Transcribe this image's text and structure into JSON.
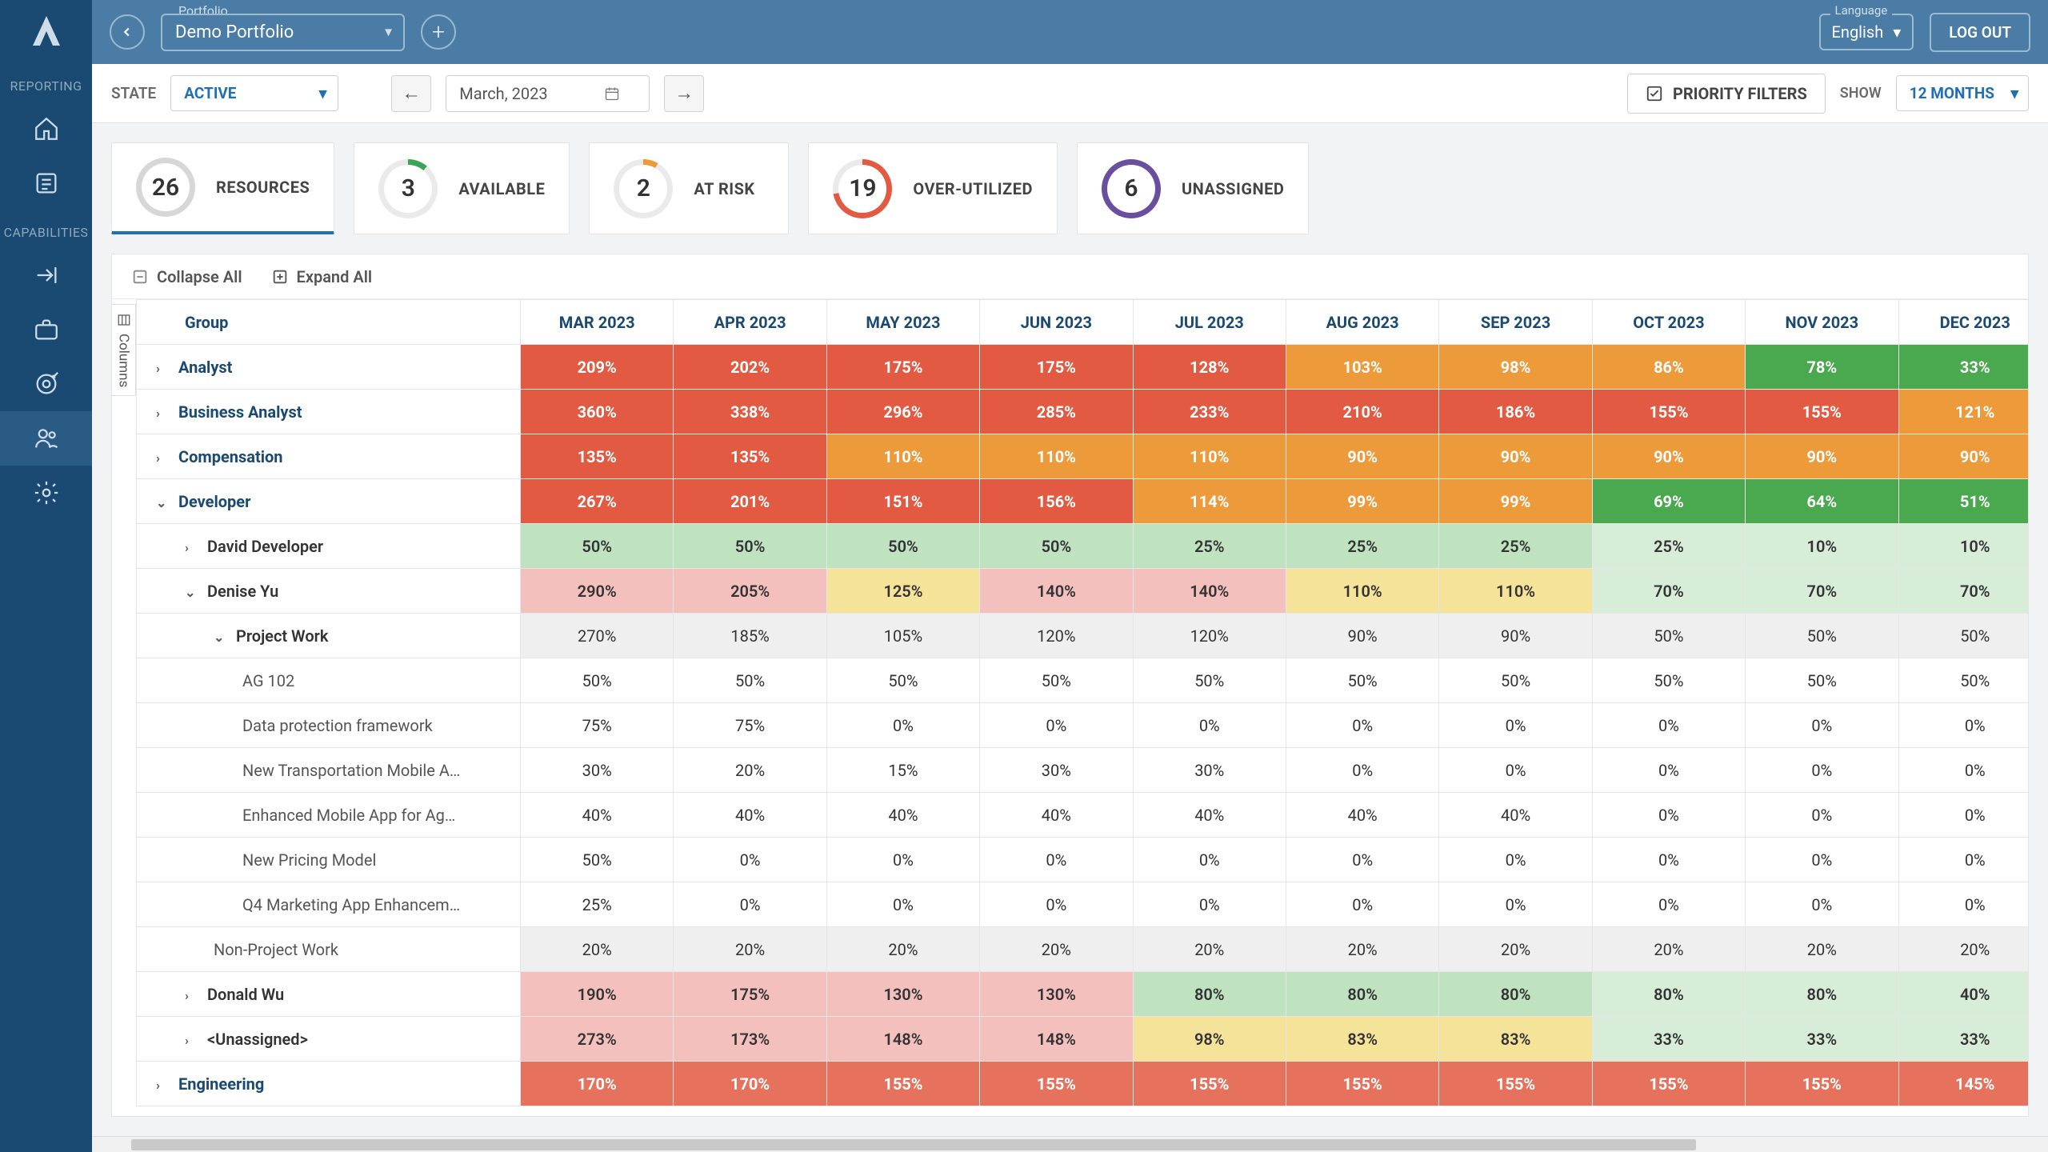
{
  "sidebar": {
    "section1": "REPORTING",
    "section2": "CAPABILITIES"
  },
  "topbar": {
    "portfolio_label": "Portfolio",
    "portfolio_value": "Demo Portfolio",
    "language_label": "Language",
    "language_value": "English",
    "logout": "LOG OUT"
  },
  "toolbar": {
    "state_label": "STATE",
    "state_value": "ACTIVE",
    "date_value": "March, 2023",
    "priority_filters": "PRIORITY FILTERS",
    "show_label": "SHOW",
    "months_value": "12 MONTHS"
  },
  "kpis": [
    {
      "value": "26",
      "label": "RESOURCES",
      "ring_color": "#d7d7d7",
      "arc_color": "#d7d7d7",
      "arc_deg": 360,
      "active": true
    },
    {
      "value": "3",
      "label": "AVAILABLE",
      "ring_color": "#eaeaea",
      "arc_color": "#3aa655",
      "arc_deg": 40,
      "active": false
    },
    {
      "value": "2",
      "label": "AT RISK",
      "ring_color": "#eaeaea",
      "arc_color": "#ed9a3a",
      "arc_deg": 30,
      "active": false
    },
    {
      "value": "19",
      "label": "OVER-UTILIZED",
      "ring_color": "#eaeaea",
      "arc_color": "#e25a42",
      "arc_deg": 260,
      "active": false
    },
    {
      "value": "6",
      "label": "UNASSIGNED",
      "ring_color": "#ffffff",
      "arc_color": "#6a4fa0",
      "arc_deg": 360,
      "active": false
    }
  ],
  "grid": {
    "collapse_all": "Collapse All",
    "expand_all": "Expand All",
    "columns_tab": "Columns",
    "group_header": "Group",
    "months": [
      "MAR 2023",
      "APR 2023",
      "MAY 2023",
      "JUN 2023",
      "JUL 2023",
      "AUG 2023",
      "SEP 2023",
      "OCT 2023",
      "NOV 2023",
      "DEC 2023"
    ],
    "colors": {
      "red": "#e25a42",
      "orange": "#ed9a3a",
      "green": "#4aa84e",
      "pink": "#f3c0bd",
      "lgreen": "#bfe3c0",
      "lgreen2": "#d7edd7",
      "yellow": "#f5e39a",
      "gray": "#efefef",
      "white": "#ffffff"
    },
    "rows": [
      {
        "label": "Analyst",
        "indent": 0,
        "expanded": false,
        "link": true,
        "cells": [
          {
            "v": "209%",
            "c": "red"
          },
          {
            "v": "202%",
            "c": "red"
          },
          {
            "v": "175%",
            "c": "red"
          },
          {
            "v": "175%",
            "c": "red"
          },
          {
            "v": "128%",
            "c": "red"
          },
          {
            "v": "103%",
            "c": "orange"
          },
          {
            "v": "98%",
            "c": "orange"
          },
          {
            "v": "86%",
            "c": "orange"
          },
          {
            "v": "78%",
            "c": "green"
          },
          {
            "v": "33%",
            "c": "green"
          }
        ]
      },
      {
        "label": "Business Analyst",
        "indent": 0,
        "expanded": false,
        "link": true,
        "cells": [
          {
            "v": "360%",
            "c": "red"
          },
          {
            "v": "338%",
            "c": "red"
          },
          {
            "v": "296%",
            "c": "red"
          },
          {
            "v": "285%",
            "c": "red"
          },
          {
            "v": "233%",
            "c": "red"
          },
          {
            "v": "210%",
            "c": "red"
          },
          {
            "v": "186%",
            "c": "red"
          },
          {
            "v": "155%",
            "c": "red"
          },
          {
            "v": "155%",
            "c": "red"
          },
          {
            "v": "121%",
            "c": "orange"
          }
        ]
      },
      {
        "label": "Compensation",
        "indent": 0,
        "expanded": false,
        "link": true,
        "cells": [
          {
            "v": "135%",
            "c": "red"
          },
          {
            "v": "135%",
            "c": "red"
          },
          {
            "v": "110%",
            "c": "orange"
          },
          {
            "v": "110%",
            "c": "orange"
          },
          {
            "v": "110%",
            "c": "orange"
          },
          {
            "v": "90%",
            "c": "orange"
          },
          {
            "v": "90%",
            "c": "orange"
          },
          {
            "v": "90%",
            "c": "orange"
          },
          {
            "v": "90%",
            "c": "orange"
          },
          {
            "v": "90%",
            "c": "orange"
          }
        ]
      },
      {
        "label": "Developer",
        "indent": 0,
        "expanded": true,
        "link": true,
        "cells": [
          {
            "v": "267%",
            "c": "red"
          },
          {
            "v": "201%",
            "c": "red"
          },
          {
            "v": "151%",
            "c": "red"
          },
          {
            "v": "156%",
            "c": "red"
          },
          {
            "v": "114%",
            "c": "orange"
          },
          {
            "v": "99%",
            "c": "orange"
          },
          {
            "v": "99%",
            "c": "orange"
          },
          {
            "v": "69%",
            "c": "green"
          },
          {
            "v": "64%",
            "c": "green"
          },
          {
            "v": "51%",
            "c": "green"
          }
        ]
      },
      {
        "label": "David Developer",
        "indent": 1,
        "expanded": false,
        "link": false,
        "cells": [
          {
            "v": "50%",
            "c": "lgreen"
          },
          {
            "v": "50%",
            "c": "lgreen"
          },
          {
            "v": "50%",
            "c": "lgreen"
          },
          {
            "v": "50%",
            "c": "lgreen"
          },
          {
            "v": "25%",
            "c": "lgreen"
          },
          {
            "v": "25%",
            "c": "lgreen"
          },
          {
            "v": "25%",
            "c": "lgreen"
          },
          {
            "v": "25%",
            "c": "lgreen2"
          },
          {
            "v": "10%",
            "c": "lgreen2"
          },
          {
            "v": "10%",
            "c": "lgreen2"
          }
        ]
      },
      {
        "label": "Denise Yu",
        "indent": 1,
        "expanded": true,
        "link": false,
        "cells": [
          {
            "v": "290%",
            "c": "pink"
          },
          {
            "v": "205%",
            "c": "pink"
          },
          {
            "v": "125%",
            "c": "yellow"
          },
          {
            "v": "140%",
            "c": "pink"
          },
          {
            "v": "140%",
            "c": "pink"
          },
          {
            "v": "110%",
            "c": "yellow"
          },
          {
            "v": "110%",
            "c": "yellow"
          },
          {
            "v": "70%",
            "c": "lgreen2"
          },
          {
            "v": "70%",
            "c": "lgreen2"
          },
          {
            "v": "70%",
            "c": "lgreen2"
          }
        ]
      },
      {
        "label": "Project Work",
        "indent": 2,
        "expanded": true,
        "link": false,
        "cells": [
          {
            "v": "270%",
            "c": "gray"
          },
          {
            "v": "185%",
            "c": "gray"
          },
          {
            "v": "105%",
            "c": "gray"
          },
          {
            "v": "120%",
            "c": "gray"
          },
          {
            "v": "120%",
            "c": "gray"
          },
          {
            "v": "90%",
            "c": "gray"
          },
          {
            "v": "90%",
            "c": "gray"
          },
          {
            "v": "50%",
            "c": "gray"
          },
          {
            "v": "50%",
            "c": "gray"
          },
          {
            "v": "50%",
            "c": "gray"
          }
        ]
      },
      {
        "label": "AG 102",
        "indent": 3,
        "leaf": true,
        "cells": [
          {
            "v": "50%",
            "c": "white"
          },
          {
            "v": "50%",
            "c": "white"
          },
          {
            "v": "50%",
            "c": "white"
          },
          {
            "v": "50%",
            "c": "white"
          },
          {
            "v": "50%",
            "c": "white"
          },
          {
            "v": "50%",
            "c": "white"
          },
          {
            "v": "50%",
            "c": "white"
          },
          {
            "v": "50%",
            "c": "white"
          },
          {
            "v": "50%",
            "c": "white"
          },
          {
            "v": "50%",
            "c": "white"
          }
        ]
      },
      {
        "label": "Data protection framework",
        "indent": 3,
        "leaf": true,
        "cells": [
          {
            "v": "75%",
            "c": "white"
          },
          {
            "v": "75%",
            "c": "white"
          },
          {
            "v": "0%",
            "c": "white"
          },
          {
            "v": "0%",
            "c": "white"
          },
          {
            "v": "0%",
            "c": "white"
          },
          {
            "v": "0%",
            "c": "white"
          },
          {
            "v": "0%",
            "c": "white"
          },
          {
            "v": "0%",
            "c": "white"
          },
          {
            "v": "0%",
            "c": "white"
          },
          {
            "v": "0%",
            "c": "white"
          }
        ]
      },
      {
        "label": "New Transportation Mobile A…",
        "indent": 3,
        "leaf": true,
        "cells": [
          {
            "v": "30%",
            "c": "white"
          },
          {
            "v": "20%",
            "c": "white"
          },
          {
            "v": "15%",
            "c": "white"
          },
          {
            "v": "30%",
            "c": "white"
          },
          {
            "v": "30%",
            "c": "white"
          },
          {
            "v": "0%",
            "c": "white"
          },
          {
            "v": "0%",
            "c": "white"
          },
          {
            "v": "0%",
            "c": "white"
          },
          {
            "v": "0%",
            "c": "white"
          },
          {
            "v": "0%",
            "c": "white"
          }
        ]
      },
      {
        "label": "Enhanced Mobile App for Ag…",
        "indent": 3,
        "leaf": true,
        "cells": [
          {
            "v": "40%",
            "c": "white"
          },
          {
            "v": "40%",
            "c": "white"
          },
          {
            "v": "40%",
            "c": "white"
          },
          {
            "v": "40%",
            "c": "white"
          },
          {
            "v": "40%",
            "c": "white"
          },
          {
            "v": "40%",
            "c": "white"
          },
          {
            "v": "40%",
            "c": "white"
          },
          {
            "v": "0%",
            "c": "white"
          },
          {
            "v": "0%",
            "c": "white"
          },
          {
            "v": "0%",
            "c": "white"
          }
        ]
      },
      {
        "label": "New Pricing Model",
        "indent": 3,
        "leaf": true,
        "cells": [
          {
            "v": "50%",
            "c": "white"
          },
          {
            "v": "0%",
            "c": "white"
          },
          {
            "v": "0%",
            "c": "white"
          },
          {
            "v": "0%",
            "c": "white"
          },
          {
            "v": "0%",
            "c": "white"
          },
          {
            "v": "0%",
            "c": "white"
          },
          {
            "v": "0%",
            "c": "white"
          },
          {
            "v": "0%",
            "c": "white"
          },
          {
            "v": "0%",
            "c": "white"
          },
          {
            "v": "0%",
            "c": "white"
          }
        ]
      },
      {
        "label": "Q4 Marketing App Enhancem…",
        "indent": 3,
        "leaf": true,
        "cells": [
          {
            "v": "25%",
            "c": "white"
          },
          {
            "v": "0%",
            "c": "white"
          },
          {
            "v": "0%",
            "c": "white"
          },
          {
            "v": "0%",
            "c": "white"
          },
          {
            "v": "0%",
            "c": "white"
          },
          {
            "v": "0%",
            "c": "white"
          },
          {
            "v": "0%",
            "c": "white"
          },
          {
            "v": "0%",
            "c": "white"
          },
          {
            "v": "0%",
            "c": "white"
          },
          {
            "v": "0%",
            "c": "white"
          }
        ]
      },
      {
        "label": "Non-Project Work",
        "indent": 2,
        "leaf": true,
        "cells": [
          {
            "v": "20%",
            "c": "gray"
          },
          {
            "v": "20%",
            "c": "gray"
          },
          {
            "v": "20%",
            "c": "gray"
          },
          {
            "v": "20%",
            "c": "gray"
          },
          {
            "v": "20%",
            "c": "gray"
          },
          {
            "v": "20%",
            "c": "gray"
          },
          {
            "v": "20%",
            "c": "gray"
          },
          {
            "v": "20%",
            "c": "gray"
          },
          {
            "v": "20%",
            "c": "gray"
          },
          {
            "v": "20%",
            "c": "gray"
          }
        ]
      },
      {
        "label": "Donald Wu",
        "indent": 1,
        "expanded": false,
        "link": false,
        "cells": [
          {
            "v": "190%",
            "c": "pink"
          },
          {
            "v": "175%",
            "c": "pink"
          },
          {
            "v": "130%",
            "c": "pink"
          },
          {
            "v": "130%",
            "c": "pink"
          },
          {
            "v": "80%",
            "c": "lgreen"
          },
          {
            "v": "80%",
            "c": "lgreen"
          },
          {
            "v": "80%",
            "c": "lgreen"
          },
          {
            "v": "80%",
            "c": "lgreen2"
          },
          {
            "v": "80%",
            "c": "lgreen2"
          },
          {
            "v": "40%",
            "c": "lgreen2"
          }
        ]
      },
      {
        "label": "<Unassigned>",
        "indent": 1,
        "expanded": false,
        "link": false,
        "cells": [
          {
            "v": "273%",
            "c": "pink"
          },
          {
            "v": "173%",
            "c": "pink"
          },
          {
            "v": "148%",
            "c": "pink"
          },
          {
            "v": "148%",
            "c": "pink"
          },
          {
            "v": "98%",
            "c": "yellow"
          },
          {
            "v": "83%",
            "c": "yellow"
          },
          {
            "v": "83%",
            "c": "yellow"
          },
          {
            "v": "33%",
            "c": "lgreen2"
          },
          {
            "v": "33%",
            "c": "lgreen2"
          },
          {
            "v": "33%",
            "c": "lgreen2"
          }
        ]
      },
      {
        "label": "Engineering",
        "indent": 0,
        "expanded": false,
        "link": true,
        "partial": true,
        "cells": [
          {
            "v": "170%",
            "c": "red"
          },
          {
            "v": "170%",
            "c": "red"
          },
          {
            "v": "155%",
            "c": "red"
          },
          {
            "v": "155%",
            "c": "red"
          },
          {
            "v": "155%",
            "c": "red"
          },
          {
            "v": "155%",
            "c": "red"
          },
          {
            "v": "155%",
            "c": "red"
          },
          {
            "v": "155%",
            "c": "red"
          },
          {
            "v": "155%",
            "c": "red"
          },
          {
            "v": "145%",
            "c": "red"
          }
        ]
      }
    ]
  }
}
